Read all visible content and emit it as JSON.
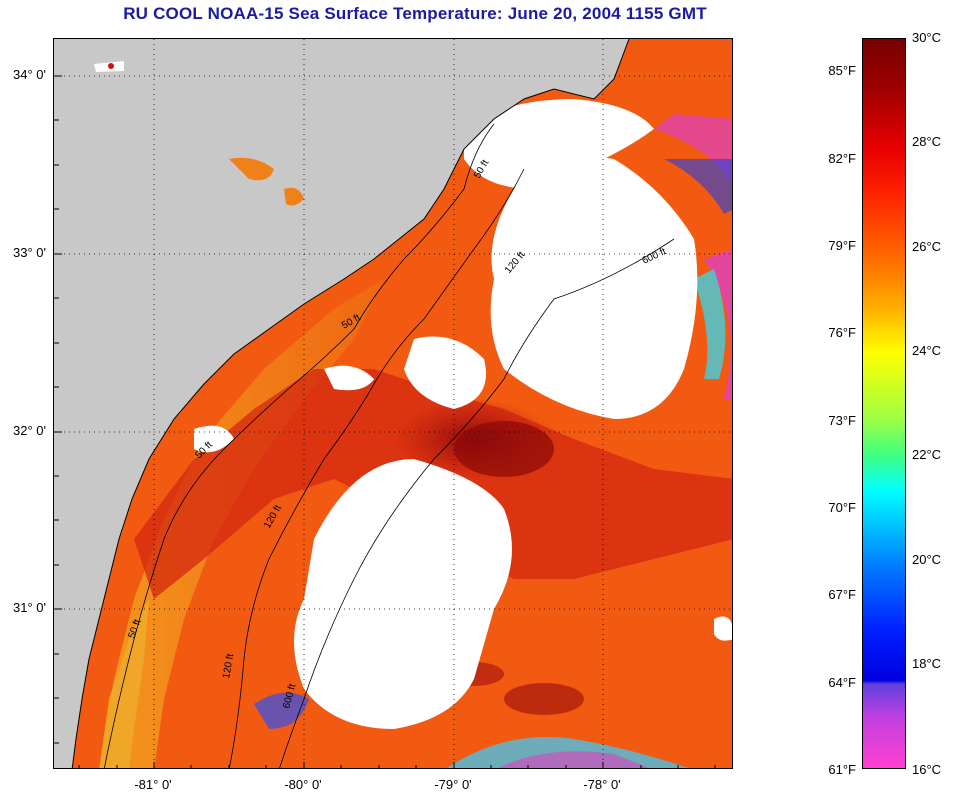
{
  "title": "RU COOL  NOAA-15  Sea Surface Temperature:  June 20, 2004 1155 GMT",
  "map": {
    "y_ticks": [
      {
        "lat": 34,
        "label": "34° 0'"
      },
      {
        "lat": 33,
        "label": "33° 0'"
      },
      {
        "lat": 32,
        "label": "32° 0'"
      },
      {
        "lat": 31,
        "label": "31° 0'"
      }
    ],
    "x_ticks": [
      {
        "lon": -81,
        "label": "-81° 0'"
      },
      {
        "lon": -80,
        "label": "-80° 0'"
      },
      {
        "lon": -79,
        "label": "-79° 0'"
      },
      {
        "lon": -78,
        "label": "-78° 0'"
      }
    ],
    "contour_labels": [
      "50 ft",
      "120 ft",
      "600 ft"
    ],
    "land_color": "#c8c8c8",
    "cloud_color": "#ffffff"
  },
  "colorbar": {
    "fahrenheit": [
      "85°F",
      "82°F",
      "79°F",
      "76°F",
      "73°F",
      "70°F",
      "67°F",
      "64°F",
      "61°F"
    ],
    "celsius": [
      "30°C",
      "28°C",
      "26°C",
      "24°C",
      "22°C",
      "20°C",
      "18°C",
      "16°C"
    ]
  }
}
